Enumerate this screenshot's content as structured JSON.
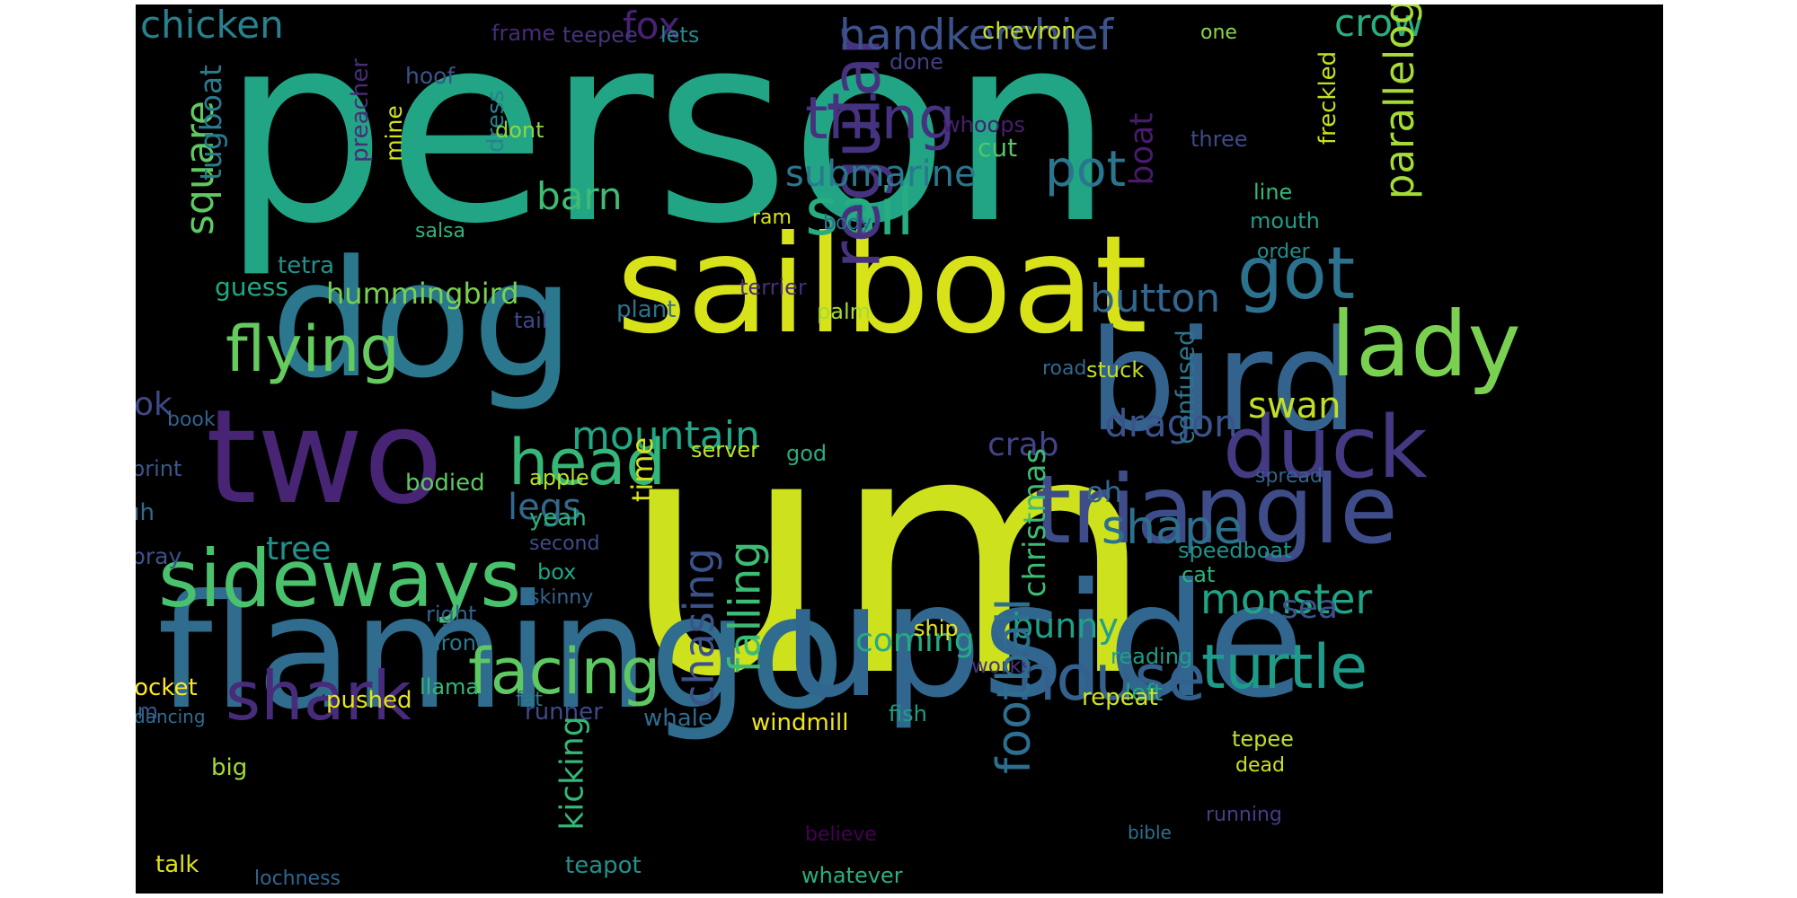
{
  "word_cloud": {
    "background": "#000000",
    "words": [
      {
        "text": "person",
        "color": "#21a585",
        "vertical": false
      },
      {
        "text": "um",
        "color": "#cde11d",
        "vertical": false
      },
      {
        "text": "sailboat",
        "color": "#d8e219",
        "vertical": false
      },
      {
        "text": "dog",
        "color": "#2b788e",
        "vertical": false
      },
      {
        "text": "bird",
        "color": "#33638d",
        "vertical": false
      },
      {
        "text": "two",
        "color": "#482475",
        "vertical": false
      },
      {
        "text": "flamingo",
        "color": "#2f6c8e",
        "vertical": false
      },
      {
        "text": "upside",
        "color": "#31668e",
        "vertical": false
      },
      {
        "text": "triangle",
        "color": "#3e4c8a",
        "vertical": false
      },
      {
        "text": "sideways",
        "color": "#4ac16d",
        "vertical": false
      },
      {
        "text": "lady",
        "color": "#7ad151",
        "vertical": false
      },
      {
        "text": "duck",
        "color": "#443a83",
        "vertical": false
      },
      {
        "text": "got",
        "color": "#2c728e",
        "vertical": false
      },
      {
        "text": "flying",
        "color": "#65cb5e",
        "vertical": false
      },
      {
        "text": "shark",
        "color": "#472c7a",
        "vertical": false
      },
      {
        "text": "facing",
        "color": "#5ec962",
        "vertical": false
      },
      {
        "text": "house",
        "color": "#34608d",
        "vertical": false
      },
      {
        "text": "turtle",
        "color": "#1e9c89",
        "vertical": false
      },
      {
        "text": "head",
        "color": "#35b779",
        "vertical": false
      },
      {
        "text": "sail",
        "color": "#27ad81",
        "vertical": false
      },
      {
        "text": "thing",
        "color": "#46327e",
        "vertical": false
      },
      {
        "text": "pot",
        "color": "#2a768e",
        "vertical": false
      },
      {
        "text": "regular",
        "color": "#46337f",
        "vertical": true
      },
      {
        "text": "handkerchief",
        "color": "#3b528b",
        "vertical": false
      },
      {
        "text": "crow",
        "color": "#29af7f",
        "vertical": false
      },
      {
        "text": "chicken",
        "color": "#26828e",
        "vertical": false
      },
      {
        "text": "fox",
        "color": "#482173",
        "vertical": false
      },
      {
        "text": "square",
        "color": "#5ec962",
        "vertical": true
      },
      {
        "text": "boat",
        "color": "#481b6d",
        "vertical": true
      },
      {
        "text": "submarine",
        "color": "#2a788e",
        "vertical": false
      },
      {
        "text": "barn",
        "color": "#3fbc73",
        "vertical": false
      },
      {
        "text": "parallelogram",
        "color": "#a5db36",
        "vertical": true
      },
      {
        "text": "button",
        "color": "#31668e",
        "vertical": false
      },
      {
        "text": "shape",
        "color": "#2d708e",
        "vertical": false
      },
      {
        "text": "mountain",
        "color": "#22a884",
        "vertical": false
      },
      {
        "text": "dragon",
        "color": "#3b528b",
        "vertical": false
      },
      {
        "text": "swan",
        "color": "#c2df23",
        "vertical": false
      },
      {
        "text": "crab",
        "color": "#414487",
        "vertical": false
      },
      {
        "text": "legs",
        "color": "#31688e",
        "vertical": false
      },
      {
        "text": "monster",
        "color": "#20a386",
        "vertical": false
      },
      {
        "text": "tree",
        "color": "#21918c",
        "vertical": false
      },
      {
        "text": "coming",
        "color": "#25ab82",
        "vertical": false
      },
      {
        "text": "bunny",
        "color": "#1fa088",
        "vertical": false
      },
      {
        "text": "hummingbird",
        "color": "#7ad151",
        "vertical": false
      },
      {
        "text": "ok",
        "color": "#3e4989",
        "vertical": false
      },
      {
        "text": "oh",
        "color": "#31688e",
        "vertical": false
      },
      {
        "text": "sea",
        "color": "#3b528b",
        "vertical": false
      },
      {
        "text": "christmas",
        "color": "#3dbc74",
        "vertical": true
      },
      {
        "text": "confused",
        "color": "#2c738e",
        "vertical": true
      },
      {
        "text": "tetra",
        "color": "#20928c",
        "vertical": false
      },
      {
        "text": "guess",
        "color": "#22a884",
        "vertical": false
      },
      {
        "text": "tugboat",
        "color": "#297b8e",
        "vertical": true
      },
      {
        "text": "preacher",
        "color": "#472d7b",
        "vertical": true
      },
      {
        "text": "mine",
        "color": "#d2e21b",
        "vertical": true
      },
      {
        "text": "dress",
        "color": "#26828e",
        "vertical": true
      },
      {
        "text": "hoof",
        "color": "#3b528b",
        "vertical": false
      },
      {
        "text": "frame",
        "color": "#472c7a",
        "vertical": false
      },
      {
        "text": "teepee",
        "color": "#46327e",
        "vertical": false
      },
      {
        "text": "lets",
        "color": "#238a8d",
        "vertical": false
      },
      {
        "text": "done",
        "color": "#423f85",
        "vertical": false
      },
      {
        "text": "chevron",
        "color": "#c8e020",
        "vertical": false
      },
      {
        "text": "one",
        "color": "#8bd646",
        "vertical": false
      },
      {
        "text": "whoops",
        "color": "#481f70",
        "vertical": false
      },
      {
        "text": "dont",
        "color": "#8bd646",
        "vertical": false
      },
      {
        "text": "cut",
        "color": "#54c568",
        "vertical": false
      },
      {
        "text": "three",
        "color": "#3e4989",
        "vertical": false
      },
      {
        "text": "freckled",
        "color": "#c8e020",
        "vertical": true
      },
      {
        "text": "line",
        "color": "#35b779",
        "vertical": false
      },
      {
        "text": "mouth",
        "color": "#1f9e89",
        "vertical": false
      },
      {
        "text": "order",
        "color": "#218f8d",
        "vertical": false
      },
      {
        "text": "ram",
        "color": "#d8e219",
        "vertical": false
      },
      {
        "text": "body",
        "color": "#30698e",
        "vertical": false
      },
      {
        "text": "salsa",
        "color": "#2fb47c",
        "vertical": false
      },
      {
        "text": "terrier",
        "color": "#472d7b",
        "vertical": false
      },
      {
        "text": "tail",
        "color": "#3e4989",
        "vertical": false
      },
      {
        "text": "plant",
        "color": "#2c728e",
        "vertical": false
      },
      {
        "text": "palm",
        "color": "#a5db36",
        "vertical": false
      },
      {
        "text": "road",
        "color": "#31688e",
        "vertical": false
      },
      {
        "text": "stuck",
        "color": "#c2df23",
        "vertical": false
      },
      {
        "text": "book",
        "color": "#33638d",
        "vertical": false
      },
      {
        "text": "print",
        "color": "#38588c",
        "vertical": false
      },
      {
        "text": "server",
        "color": "#bddf26",
        "vertical": false
      },
      {
        "text": "god",
        "color": "#27ad81",
        "vertical": false
      },
      {
        "text": "bodied",
        "color": "#5ec962",
        "vertical": false
      },
      {
        "text": "apple",
        "color": "#b5de2b",
        "vertical": false
      },
      {
        "text": "time",
        "color": "#d8e219",
        "vertical": true
      },
      {
        "text": "yeah",
        "color": "#2db27d",
        "vertical": false
      },
      {
        "text": "uh",
        "color": "#2e6e8e",
        "vertical": false
      },
      {
        "text": "pray",
        "color": "#3b528b",
        "vertical": false
      },
      {
        "text": "second",
        "color": "#3e4c8a",
        "vertical": false
      },
      {
        "text": "box",
        "color": "#21a685",
        "vertical": false
      },
      {
        "text": "skinny",
        "color": "#33638d",
        "vertical": false
      },
      {
        "text": "right",
        "color": "#32648e",
        "vertical": false
      },
      {
        "text": "iron",
        "color": "#2a788e",
        "vertical": false
      },
      {
        "text": "chasing",
        "color": "#3b528b",
        "vertical": true
      },
      {
        "text": "falling",
        "color": "#3dbc74",
        "vertical": true
      },
      {
        "text": "spread",
        "color": "#33638d",
        "vertical": false
      },
      {
        "text": "speedboat",
        "color": "#21918c",
        "vertical": false
      },
      {
        "text": "cat",
        "color": "#2db27d",
        "vertical": false
      },
      {
        "text": "ship",
        "color": "#e5e419",
        "vertical": false
      },
      {
        "text": "works",
        "color": "#46307e",
        "vertical": false
      },
      {
        "text": "reading",
        "color": "#1f9e89",
        "vertical": false
      },
      {
        "text": "left",
        "color": "#22a884",
        "vertical": false
      },
      {
        "text": "repeat",
        "color": "#d2e21b",
        "vertical": false
      },
      {
        "text": "rocket",
        "color": "#fde725",
        "vertical": false
      },
      {
        "text": "llama",
        "color": "#35b779",
        "vertical": false
      },
      {
        "text": "im",
        "color": "#39568c",
        "vertical": false
      },
      {
        "text": "dancing",
        "color": "#2f6c8e",
        "vertical": false
      },
      {
        "text": "pushed",
        "color": "#e5e419",
        "vertical": false
      },
      {
        "text": "fat",
        "color": "#2a788e",
        "vertical": false
      },
      {
        "text": "runner",
        "color": "#3e4a89",
        "vertical": false
      },
      {
        "text": "whale",
        "color": "#2f6c8e",
        "vertical": false
      },
      {
        "text": "windmill",
        "color": "#f1e51d",
        "vertical": false
      },
      {
        "text": "fish",
        "color": "#1f9e89",
        "vertical": false
      },
      {
        "text": "football",
        "color": "#2e6e8e",
        "vertical": true
      },
      {
        "text": "tepee",
        "color": "#bddf26",
        "vertical": false
      },
      {
        "text": "dead",
        "color": "#cde11d",
        "vertical": false
      },
      {
        "text": "running",
        "color": "#433e85",
        "vertical": false
      },
      {
        "text": "big",
        "color": "#a5db36",
        "vertical": false
      },
      {
        "text": "kicking",
        "color": "#35b779",
        "vertical": true
      },
      {
        "text": "believe",
        "color": "#440154",
        "vertical": false
      },
      {
        "text": "bible",
        "color": "#2c728e",
        "vertical": false
      },
      {
        "text": "talk",
        "color": "#dde318",
        "vertical": false
      },
      {
        "text": "teapot",
        "color": "#21918c",
        "vertical": false
      },
      {
        "text": "whatever",
        "color": "#29af7f",
        "vertical": false
      },
      {
        "text": "lochness",
        "color": "#32658e",
        "vertical": false
      }
    ]
  }
}
